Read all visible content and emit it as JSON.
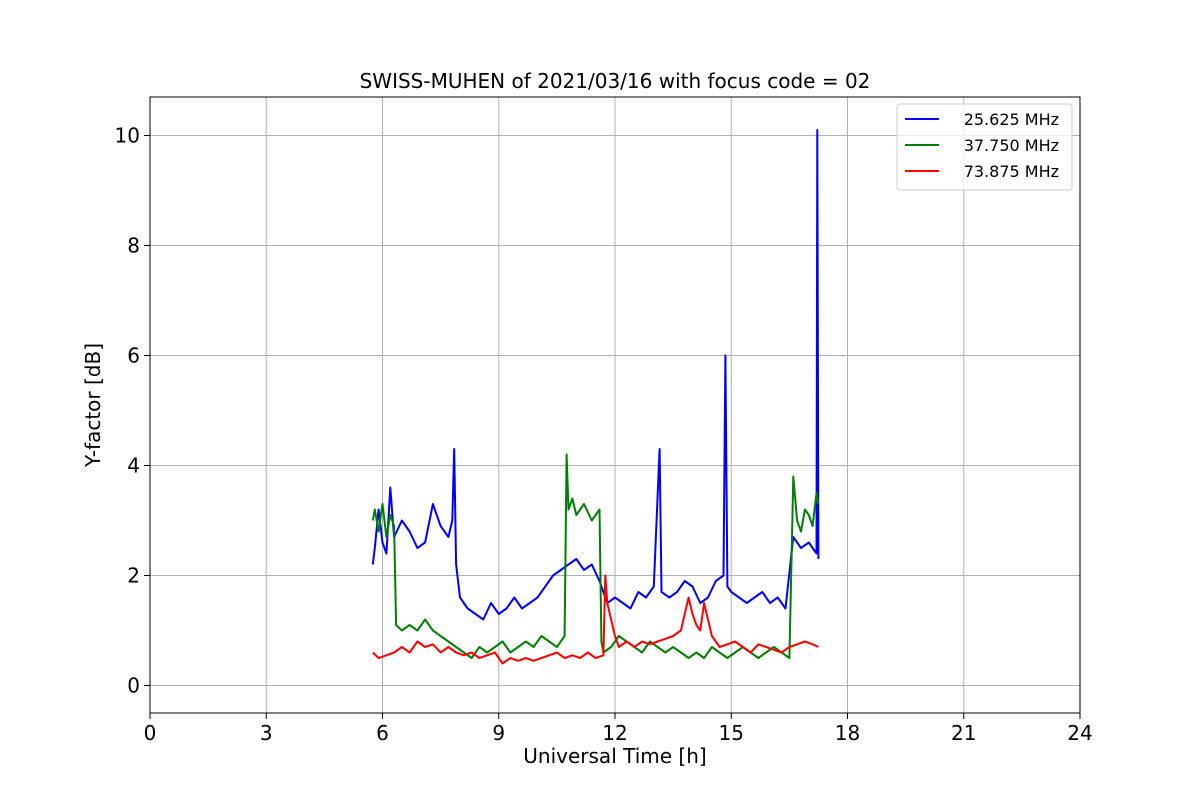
{
  "chart_data": {
    "type": "line",
    "title": "SWISS-MUHEN of 2021/03/16 with focus code = 02",
    "xlabel": "Universal Time [h]",
    "ylabel": "Y-factor [dB]",
    "xlim": [
      0,
      24
    ],
    "ylim": [
      -0.5,
      10.7
    ],
    "xticks": [
      0,
      3,
      6,
      9,
      12,
      15,
      18,
      21,
      24
    ],
    "yticks": [
      0,
      2,
      4,
      6,
      8,
      10
    ],
    "grid": true,
    "legend_position": "top-right",
    "series": [
      {
        "name": "25.625 MHz",
        "color": "#0000ff",
        "x": [
          5.75,
          5.8,
          5.9,
          6.0,
          6.1,
          6.2,
          6.3,
          6.5,
          6.7,
          6.9,
          7.1,
          7.3,
          7.5,
          7.7,
          7.8,
          7.85,
          7.9,
          8.0,
          8.2,
          8.4,
          8.6,
          8.8,
          9.0,
          9.2,
          9.4,
          9.6,
          9.8,
          10.0,
          10.2,
          10.4,
          10.6,
          10.8,
          11.0,
          11.2,
          11.4,
          11.6,
          11.8,
          12.0,
          12.2,
          12.4,
          12.6,
          12.8,
          13.0,
          13.15,
          13.2,
          13.4,
          13.6,
          13.8,
          14.0,
          14.2,
          14.4,
          14.6,
          14.8,
          14.85,
          14.9,
          15.0,
          15.2,
          15.4,
          15.6,
          15.8,
          16.0,
          16.2,
          16.4,
          16.6,
          16.8,
          17.0,
          17.2,
          17.22,
          17.25
        ],
        "y": [
          2.2,
          2.5,
          3.2,
          2.6,
          2.4,
          3.6,
          2.7,
          3.0,
          2.8,
          2.5,
          2.6,
          3.3,
          2.9,
          2.7,
          3.0,
          4.3,
          2.2,
          1.6,
          1.4,
          1.3,
          1.2,
          1.5,
          1.3,
          1.4,
          1.6,
          1.4,
          1.5,
          1.6,
          1.8,
          2.0,
          2.1,
          2.2,
          2.3,
          2.1,
          2.2,
          1.9,
          1.5,
          1.6,
          1.5,
          1.4,
          1.7,
          1.6,
          1.8,
          4.3,
          1.7,
          1.6,
          1.7,
          1.9,
          1.8,
          1.5,
          1.6,
          1.9,
          2.0,
          6.0,
          1.8,
          1.7,
          1.6,
          1.5,
          1.6,
          1.7,
          1.5,
          1.6,
          1.4,
          2.7,
          2.5,
          2.6,
          2.4,
          10.1,
          2.3
        ]
      },
      {
        "name": "37.750 MHz",
        "color": "#008000",
        "x": [
          5.75,
          5.8,
          5.9,
          6.0,
          6.1,
          6.2,
          6.3,
          6.35,
          6.5,
          6.7,
          6.9,
          7.1,
          7.3,
          7.5,
          7.7,
          7.9,
          8.1,
          8.3,
          8.5,
          8.7,
          8.9,
          9.1,
          9.3,
          9.5,
          9.7,
          9.9,
          10.1,
          10.3,
          10.5,
          10.7,
          10.75,
          10.8,
          10.9,
          11.0,
          11.2,
          11.4,
          11.6,
          11.65,
          11.7,
          11.9,
          12.1,
          12.3,
          12.5,
          12.7,
          12.9,
          13.1,
          13.3,
          13.5,
          13.7,
          13.9,
          14.1,
          14.3,
          14.5,
          14.7,
          14.9,
          15.1,
          15.3,
          15.5,
          15.7,
          15.9,
          16.1,
          16.3,
          16.5,
          16.6,
          16.7,
          16.8,
          16.9,
          17.0,
          17.1,
          17.2,
          17.25
        ],
        "y": [
          3.0,
          3.2,
          2.8,
          3.3,
          2.7,
          3.1,
          2.9,
          1.1,
          1.0,
          1.1,
          1.0,
          1.2,
          1.0,
          0.9,
          0.8,
          0.7,
          0.6,
          0.5,
          0.7,
          0.6,
          0.7,
          0.8,
          0.6,
          0.7,
          0.8,
          0.7,
          0.9,
          0.8,
          0.7,
          0.9,
          4.2,
          3.2,
          3.4,
          3.1,
          3.3,
          3.0,
          3.2,
          0.8,
          0.6,
          0.7,
          0.9,
          0.8,
          0.7,
          0.6,
          0.8,
          0.7,
          0.6,
          0.7,
          0.6,
          0.5,
          0.6,
          0.5,
          0.7,
          0.6,
          0.5,
          0.6,
          0.7,
          0.6,
          0.5,
          0.6,
          0.7,
          0.6,
          0.5,
          3.8,
          3.0,
          2.8,
          3.2,
          3.1,
          2.9,
          3.5,
          3.3
        ]
      },
      {
        "name": "73.875 MHz",
        "color": "#ff0000",
        "x": [
          5.75,
          5.9,
          6.1,
          6.3,
          6.5,
          6.7,
          6.9,
          7.1,
          7.3,
          7.5,
          7.7,
          7.9,
          8.1,
          8.3,
          8.5,
          8.7,
          8.9,
          9.1,
          9.3,
          9.5,
          9.7,
          9.9,
          10.1,
          10.3,
          10.5,
          10.7,
          10.9,
          11.1,
          11.3,
          11.5,
          11.7,
          11.75,
          11.8,
          11.9,
          12.0,
          12.1,
          12.3,
          12.5,
          12.7,
          12.9,
          13.1,
          13.3,
          13.5,
          13.7,
          13.9,
          14.0,
          14.1,
          14.2,
          14.3,
          14.4,
          14.5,
          14.6,
          14.7,
          14.9,
          15.1,
          15.3,
          15.5,
          15.7,
          15.9,
          16.1,
          16.3,
          16.5,
          16.7,
          16.9,
          17.1,
          17.25
        ],
        "y": [
          0.6,
          0.5,
          0.55,
          0.6,
          0.7,
          0.6,
          0.8,
          0.7,
          0.75,
          0.6,
          0.7,
          0.6,
          0.55,
          0.6,
          0.5,
          0.55,
          0.6,
          0.4,
          0.5,
          0.45,
          0.5,
          0.45,
          0.5,
          0.55,
          0.6,
          0.5,
          0.55,
          0.5,
          0.6,
          0.5,
          0.55,
          2.0,
          1.5,
          1.2,
          0.9,
          0.7,
          0.8,
          0.7,
          0.8,
          0.75,
          0.8,
          0.85,
          0.9,
          1.0,
          1.6,
          1.3,
          1.1,
          1.0,
          1.5,
          1.2,
          0.9,
          0.8,
          0.7,
          0.75,
          0.8,
          0.7,
          0.6,
          0.75,
          0.7,
          0.65,
          0.6,
          0.7,
          0.75,
          0.8,
          0.75,
          0.7
        ]
      }
    ]
  }
}
